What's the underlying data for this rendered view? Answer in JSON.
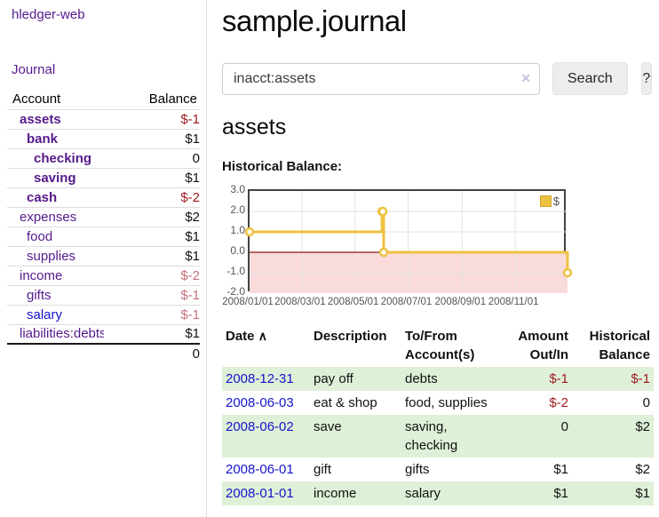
{
  "sidebar": {
    "brand": "hledger-web",
    "journal_link": "Journal",
    "accounts_table": {
      "account_header": "Account",
      "balance_header": "Balance",
      "rows": [
        {
          "name": "assets",
          "depth": 1,
          "bold": true,
          "name_color": "purple",
          "balance": "$-1",
          "balance_class": "amt-negbold"
        },
        {
          "name": "bank",
          "depth": 2,
          "bold": true,
          "name_color": "purple",
          "balance": "$1",
          "balance_class": "amt-bold"
        },
        {
          "name": "checking",
          "depth": 3,
          "bold": true,
          "name_color": "purple",
          "balance": "0",
          "balance_class": "amt-bold"
        },
        {
          "name": "saving",
          "depth": 3,
          "bold": true,
          "name_color": "purple",
          "balance": "$1",
          "balance_class": "amt-bold"
        },
        {
          "name": "cash",
          "depth": 2,
          "bold": true,
          "name_color": "purple",
          "balance": "$-2",
          "balance_class": "amt-negbold"
        },
        {
          "name": "expenses",
          "depth": 1,
          "bold": false,
          "name_color": "purple",
          "balance": "$2",
          "balance_class": "amt-plain"
        },
        {
          "name": "food",
          "depth": 2,
          "bold": false,
          "name_color": "purple",
          "balance": "$1",
          "balance_class": "amt-plain"
        },
        {
          "name": "supplies",
          "depth": 2,
          "bold": false,
          "name_color": "purple",
          "balance": "$1",
          "balance_class": "amt-plain"
        },
        {
          "name": "income",
          "depth": 1,
          "bold": false,
          "name_color": "purple",
          "balance": "$-2",
          "balance_class": "amt-rose"
        },
        {
          "name": "gifts",
          "depth": 2,
          "bold": false,
          "name_color": "purple",
          "balance": "$-1",
          "balance_class": "amt-rose"
        },
        {
          "name": "salary",
          "depth": 2,
          "bold": false,
          "name_color": "blue",
          "balance": "$-1",
          "balance_class": "amt-rose"
        },
        {
          "name": "liabilities:debts",
          "depth": 1,
          "bold": false,
          "name_color": "purple",
          "balance": "$1",
          "balance_class": "amt-plain"
        }
      ],
      "total": "0"
    }
  },
  "header": {
    "title": "sample.journal"
  },
  "search": {
    "value": "inacct:assets",
    "clear_icon": "✕",
    "button_label": "Search",
    "help_label": "?"
  },
  "account_page": {
    "heading": "assets",
    "chart_label": "Historical Balance:"
  },
  "chart_data": {
    "type": "line",
    "step": true,
    "title": "Historical Balance",
    "series": [
      {
        "name": "$",
        "color": "#edc240",
        "points": [
          [
            "2008-01-01",
            1
          ],
          [
            "2008-06-01",
            2
          ],
          [
            "2008-06-02",
            2
          ],
          [
            "2008-06-03",
            0
          ],
          [
            "2008-12-31",
            -1
          ]
        ]
      }
    ],
    "xrange": [
      "2008-01-01",
      "2008-12-31"
    ],
    "ylim": [
      -2,
      3
    ],
    "yticks": [
      3.0,
      2.0,
      1.0,
      0.0,
      -1.0,
      -2.0
    ],
    "ytick_labels": [
      "3.0",
      "2.0",
      "1.0",
      "0.0",
      "-1.0",
      "-2.0"
    ],
    "xtick_dates": [
      "2008-01-01",
      "2008-03-01",
      "2008-05-01",
      "2008-07-01",
      "2008-09-01",
      "2008-11-01"
    ],
    "xtick_labels": [
      "2008/01/01",
      "2008/03/01",
      "2008/05/01",
      "2008/07/01",
      "2008/09/01",
      "2008/11/01"
    ],
    "grid": true,
    "grid_color": "#e3e3e3",
    "negative_region_color": "#fadbdb",
    "zero_line_color": "#8b1717",
    "legend": {
      "label": "$",
      "position": "top-right"
    }
  },
  "transactions": {
    "headers": {
      "date": "Date",
      "sort_icon": "∧",
      "description": "Description",
      "accounts": "To/From Account(s)",
      "amount": "Amount Out/In",
      "balance": "Historical Balance"
    },
    "rows": [
      {
        "date": "2008-12-31",
        "description": "pay off",
        "accounts_lines": [
          "debts"
        ],
        "amount": "$-1",
        "amount_neg": true,
        "balance": "$-1",
        "balance_neg": true
      },
      {
        "date": "2008-06-03",
        "description": "eat & shop",
        "accounts_lines": [
          "food, supplies"
        ],
        "amount": "$-2",
        "amount_neg": true,
        "balance": "0",
        "balance_neg": false
      },
      {
        "date": "2008-06-02",
        "description": "save",
        "accounts_lines": [
          "saving,",
          "checking"
        ],
        "amount": "0",
        "amount_neg": false,
        "balance": "$2",
        "balance_neg": false
      },
      {
        "date": "2008-06-01",
        "description": "gift",
        "accounts_lines": [
          "gifts"
        ],
        "amount": "$1",
        "amount_neg": false,
        "balance": "$2",
        "balance_neg": false
      },
      {
        "date": "2008-01-01",
        "description": "income",
        "accounts_lines": [
          "salary"
        ],
        "amount": "$1",
        "amount_neg": false,
        "balance": "$1",
        "balance_neg": false
      }
    ]
  }
}
